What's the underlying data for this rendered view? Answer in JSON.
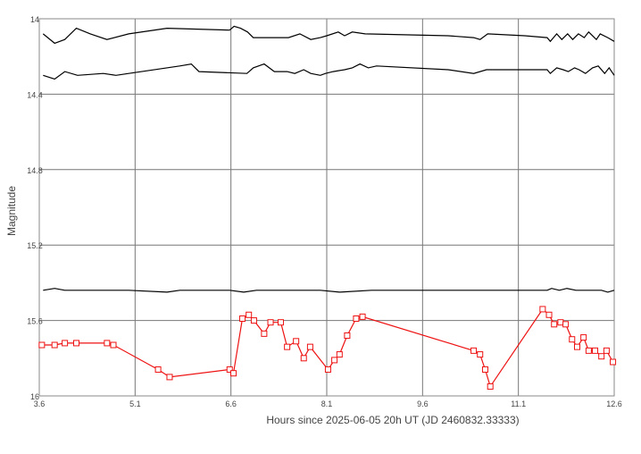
{
  "chart_data": {
    "type": "line",
    "xlabel": "Hours since 2025-06-05 20h UT (JD 2460832.33333)",
    "ylabel": "Magnitude",
    "xlim": [
      3.6,
      12.6
    ],
    "ylim": [
      14.0,
      16.0
    ],
    "y_inverted": true,
    "grid": true,
    "x_ticks": [
      {
        "value": 3.6,
        "label": "3.6"
      },
      {
        "value": 5.1,
        "label": "5.1"
      },
      {
        "value": 6.6,
        "label": "6.6"
      },
      {
        "value": 8.1,
        "label": "8.1"
      },
      {
        "value": 9.6,
        "label": "9.6"
      },
      {
        "value": 11.1,
        "label": "11.1"
      },
      {
        "value": 12.6,
        "label": "12.6"
      }
    ],
    "y_ticks": [
      {
        "value": 14.0,
        "label": "14"
      },
      {
        "value": 14.4,
        "label": "14.4"
      },
      {
        "value": 14.8,
        "label": "14.8"
      },
      {
        "value": 15.2,
        "label": "15.2"
      },
      {
        "value": 15.6,
        "label": "15.6"
      },
      {
        "value": 16.0,
        "label": "16"
      }
    ],
    "colors": {
      "reference": "#000000",
      "target": "#ee1111",
      "grid": "#777777",
      "axis": "#888888"
    },
    "series": [
      {
        "role": "reference",
        "marker": "none",
        "points": [
          [
            3.66,
            14.08
          ],
          [
            3.84,
            14.13
          ],
          [
            4.0,
            14.11
          ],
          [
            4.18,
            14.05
          ],
          [
            4.4,
            14.08
          ],
          [
            4.66,
            14.11
          ],
          [
            5.0,
            14.08
          ],
          [
            5.6,
            14.05
          ],
          [
            6.58,
            14.06
          ],
          [
            6.65,
            14.04
          ],
          [
            6.75,
            14.05
          ],
          [
            6.86,
            14.07
          ],
          [
            6.95,
            14.1
          ],
          [
            7.5,
            14.1
          ],
          [
            7.68,
            14.08
          ],
          [
            7.85,
            14.11
          ],
          [
            8.0,
            14.1
          ],
          [
            8.1,
            14.09
          ],
          [
            8.28,
            14.07
          ],
          [
            8.38,
            14.09
          ],
          [
            8.5,
            14.07
          ],
          [
            8.7,
            14.08
          ],
          [
            10.0,
            14.09
          ],
          [
            10.4,
            14.1
          ],
          [
            10.5,
            14.11
          ],
          [
            10.62,
            14.08
          ],
          [
            11.2,
            14.09
          ],
          [
            11.55,
            14.1
          ],
          [
            11.6,
            14.12
          ],
          [
            11.7,
            14.08
          ],
          [
            11.78,
            14.11
          ],
          [
            11.87,
            14.08
          ],
          [
            11.95,
            14.11
          ],
          [
            12.04,
            14.08
          ],
          [
            12.13,
            14.1
          ],
          [
            12.2,
            14.07
          ],
          [
            12.32,
            14.11
          ],
          [
            12.38,
            14.08
          ],
          [
            12.5,
            14.1
          ],
          [
            12.6,
            14.12
          ]
        ]
      },
      {
        "role": "reference",
        "marker": "none",
        "points": [
          [
            3.66,
            14.3
          ],
          [
            3.84,
            14.32
          ],
          [
            4.0,
            14.28
          ],
          [
            4.2,
            14.3
          ],
          [
            4.6,
            14.29
          ],
          [
            4.8,
            14.3
          ],
          [
            5.0,
            14.29
          ],
          [
            5.8,
            14.25
          ],
          [
            5.98,
            14.24
          ],
          [
            6.1,
            14.28
          ],
          [
            6.85,
            14.29
          ],
          [
            6.95,
            14.26
          ],
          [
            7.12,
            14.24
          ],
          [
            7.28,
            14.28
          ],
          [
            7.48,
            14.28
          ],
          [
            7.6,
            14.29
          ],
          [
            7.74,
            14.27
          ],
          [
            7.85,
            14.29
          ],
          [
            8.0,
            14.3
          ],
          [
            8.08,
            14.29
          ],
          [
            8.2,
            14.28
          ],
          [
            8.38,
            14.27
          ],
          [
            8.5,
            14.26
          ],
          [
            8.62,
            14.24
          ],
          [
            8.75,
            14.26
          ],
          [
            8.88,
            14.25
          ],
          [
            10.0,
            14.27
          ],
          [
            10.4,
            14.29
          ],
          [
            10.6,
            14.27
          ],
          [
            11.2,
            14.27
          ],
          [
            11.55,
            14.27
          ],
          [
            11.6,
            14.29
          ],
          [
            11.7,
            14.26
          ],
          [
            11.8,
            14.27
          ],
          [
            11.88,
            14.28
          ],
          [
            11.98,
            14.26
          ],
          [
            12.05,
            14.27
          ],
          [
            12.15,
            14.29
          ],
          [
            12.26,
            14.26
          ],
          [
            12.35,
            14.25
          ],
          [
            12.45,
            14.29
          ],
          [
            12.52,
            14.26
          ],
          [
            12.6,
            14.3
          ]
        ]
      },
      {
        "role": "reference",
        "marker": "none",
        "points": [
          [
            3.66,
            15.44
          ],
          [
            3.84,
            15.43
          ],
          [
            4.0,
            15.44
          ],
          [
            4.4,
            15.44
          ],
          [
            5.0,
            15.44
          ],
          [
            5.6,
            15.45
          ],
          [
            5.8,
            15.44
          ],
          [
            6.58,
            15.44
          ],
          [
            6.8,
            15.45
          ],
          [
            7.0,
            15.44
          ],
          [
            7.6,
            15.44
          ],
          [
            8.0,
            15.44
          ],
          [
            8.3,
            15.45
          ],
          [
            8.8,
            15.44
          ],
          [
            10.0,
            15.44
          ],
          [
            11.2,
            15.44
          ],
          [
            11.55,
            15.44
          ],
          [
            11.62,
            15.43
          ],
          [
            11.74,
            15.44
          ],
          [
            11.86,
            15.43
          ],
          [
            12.0,
            15.44
          ],
          [
            12.2,
            15.44
          ],
          [
            12.4,
            15.44
          ],
          [
            12.5,
            15.45
          ],
          [
            12.6,
            15.44
          ]
        ]
      },
      {
        "role": "target",
        "marker": "square",
        "points": [
          [
            3.64,
            15.73
          ],
          [
            3.84,
            15.73
          ],
          [
            4.0,
            15.72
          ],
          [
            4.18,
            15.72
          ],
          [
            4.66,
            15.72
          ],
          [
            4.76,
            15.73
          ],
          [
            5.46,
            15.86
          ],
          [
            5.64,
            15.9
          ],
          [
            6.58,
            15.86
          ],
          [
            6.64,
            15.88
          ],
          [
            6.78,
            15.59
          ],
          [
            6.88,
            15.57
          ],
          [
            6.96,
            15.6
          ],
          [
            7.12,
            15.67
          ],
          [
            7.22,
            15.61
          ],
          [
            7.38,
            15.61
          ],
          [
            7.48,
            15.74
          ],
          [
            7.62,
            15.71
          ],
          [
            7.74,
            15.8
          ],
          [
            7.84,
            15.74
          ],
          [
            8.12,
            15.86
          ],
          [
            8.22,
            15.81
          ],
          [
            8.3,
            15.78
          ],
          [
            8.42,
            15.68
          ],
          [
            8.56,
            15.59
          ],
          [
            8.66,
            15.58
          ],
          [
            10.4,
            15.76
          ],
          [
            10.5,
            15.78
          ],
          [
            10.58,
            15.86
          ],
          [
            10.66,
            15.95
          ],
          [
            11.48,
            15.54
          ],
          [
            11.58,
            15.57
          ],
          [
            11.66,
            15.62
          ],
          [
            11.76,
            15.61
          ],
          [
            11.84,
            15.62
          ],
          [
            11.94,
            15.7
          ],
          [
            12.02,
            15.74
          ],
          [
            12.12,
            15.69
          ],
          [
            12.2,
            15.76
          ],
          [
            12.3,
            15.76
          ],
          [
            12.4,
            15.79
          ],
          [
            12.48,
            15.76
          ],
          [
            12.58,
            15.82
          ]
        ]
      }
    ]
  }
}
